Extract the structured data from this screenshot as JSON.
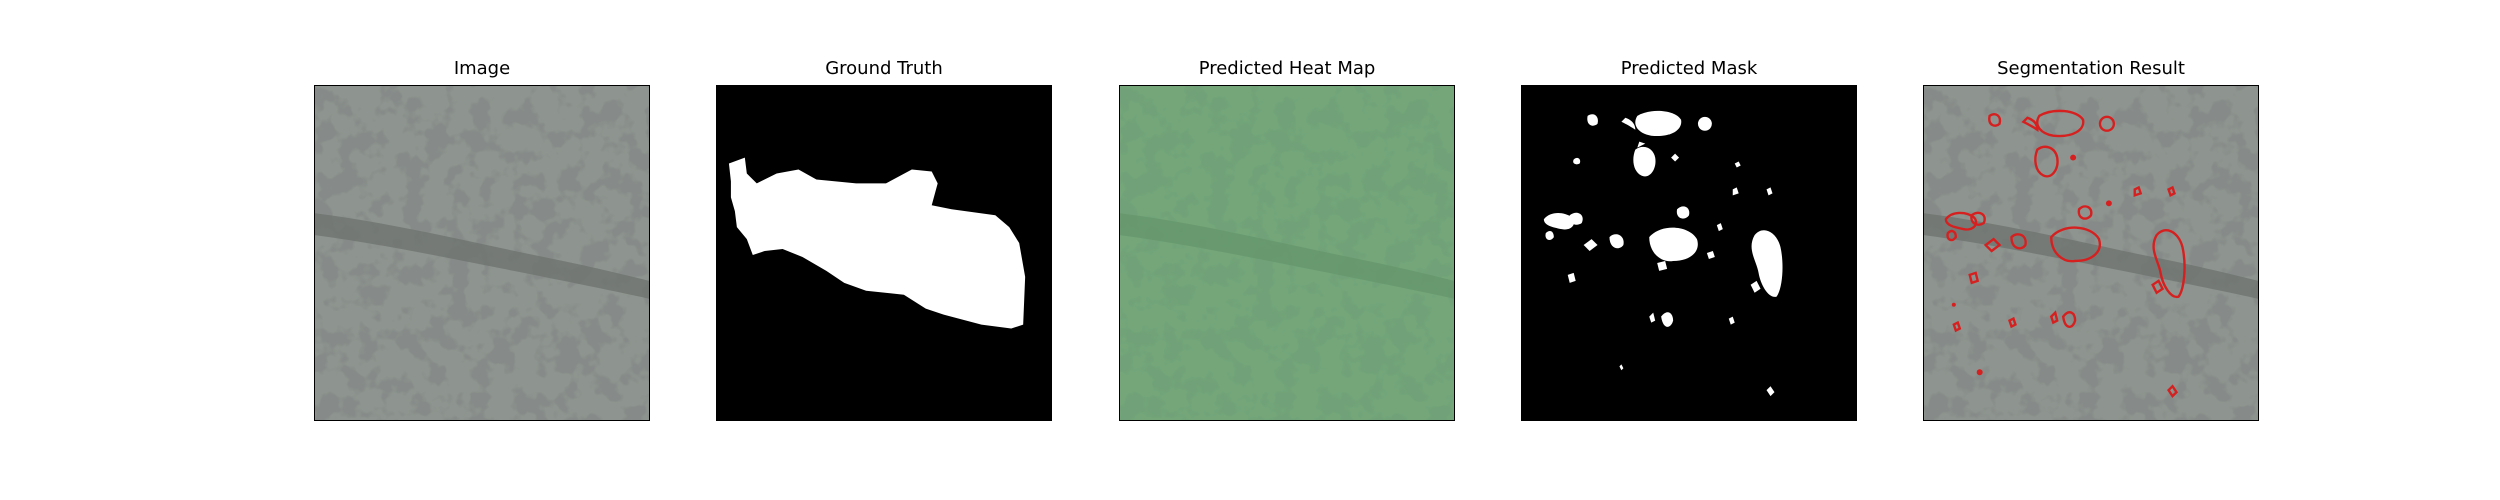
{
  "figure": {
    "panels": [
      {
        "id": "image",
        "title": "Image",
        "icon": "aerial-photo",
        "colors": {
          "base": "#8e948f",
          "spots": "#3f4340"
        }
      },
      {
        "id": "ground_truth",
        "title": "Ground Truth",
        "icon": "binary-mask",
        "colors": {
          "background": "#000000",
          "mask": "#ffffff"
        }
      },
      {
        "id": "heat_map",
        "title": "Predicted Heat Map",
        "icon": "heat-map",
        "colors": {
          "overlay": "#5fb56a"
        }
      },
      {
        "id": "predicted_mask",
        "title": "Predicted Mask",
        "icon": "binary-mask",
        "colors": {
          "background": "#000000",
          "mask": "#ffffff"
        }
      },
      {
        "id": "segmentation",
        "title": "Segmentation Result",
        "icon": "contour-overlay",
        "colors": {
          "contour": "#d62020"
        }
      }
    ]
  }
}
